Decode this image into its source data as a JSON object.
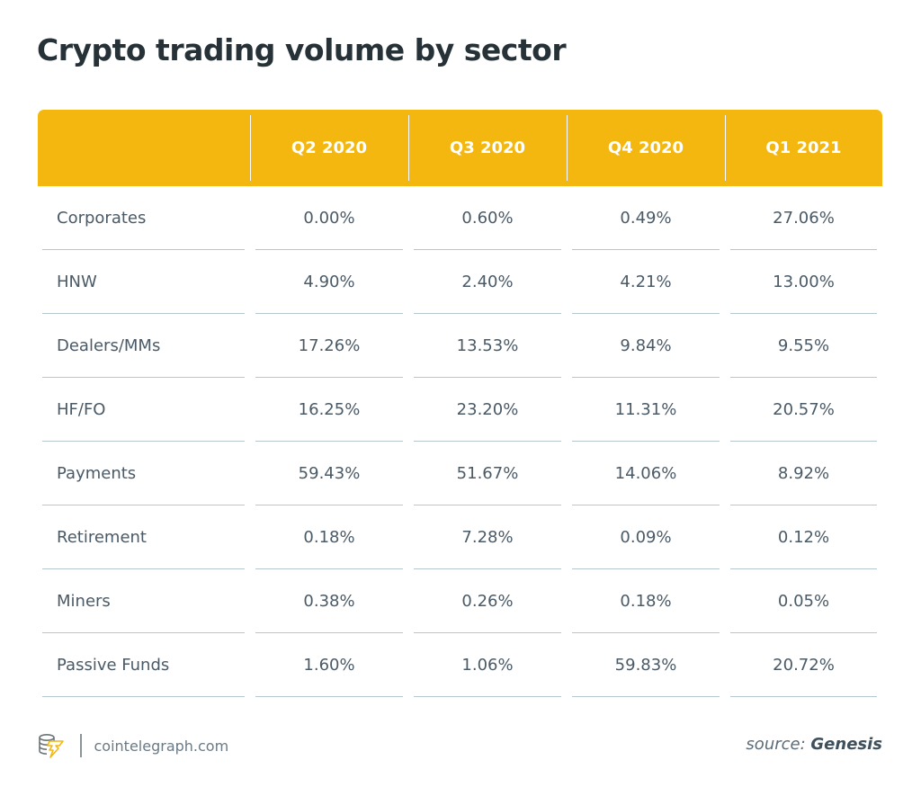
{
  "title": "Crypto trading volume by sector",
  "colors": {
    "header_bg": "#f3b70f",
    "header_text": "#ffffff",
    "title": "#263238",
    "cell_text": "#4a5a66",
    "rule": "#b8c6ce"
  },
  "chart_data": {
    "type": "table",
    "title": "Crypto trading volume by sector",
    "columns": [
      "",
      "Q2 2020",
      "Q3 2020",
      "Q4 2020",
      "Q1 2021"
    ],
    "rows": [
      {
        "sector": "Corporates",
        "values": [
          "0.00%",
          "0.60%",
          "0.49%",
          "27.06%"
        ]
      },
      {
        "sector": "HNW",
        "values": [
          "4.90%",
          "2.40%",
          "4.21%",
          "13.00%"
        ]
      },
      {
        "sector": "Dealers/MMs",
        "values": [
          "17.26%",
          "13.53%",
          "9.84%",
          "9.55%"
        ]
      },
      {
        "sector": "HF/FO",
        "values": [
          "16.25%",
          "23.20%",
          "11.31%",
          "20.57%"
        ]
      },
      {
        "sector": "Payments",
        "values": [
          "59.43%",
          "51.67%",
          "14.06%",
          "8.92%"
        ]
      },
      {
        "sector": "Retirement",
        "values": [
          "0.18%",
          "7.28%",
          "0.09%",
          "0.12%"
        ]
      },
      {
        "sector": "Miners",
        "values": [
          "0.38%",
          "0.26%",
          "0.18%",
          "0.05%"
        ]
      },
      {
        "sector": "Passive Funds",
        "values": [
          "1.60%",
          "1.06%",
          "59.83%",
          "20.72%"
        ]
      }
    ]
  },
  "footer": {
    "logo_icon": "cointelegraph-coins-bolt-icon",
    "site": "cointelegraph.com",
    "source_label": "source:",
    "source_name": "Genesis"
  }
}
